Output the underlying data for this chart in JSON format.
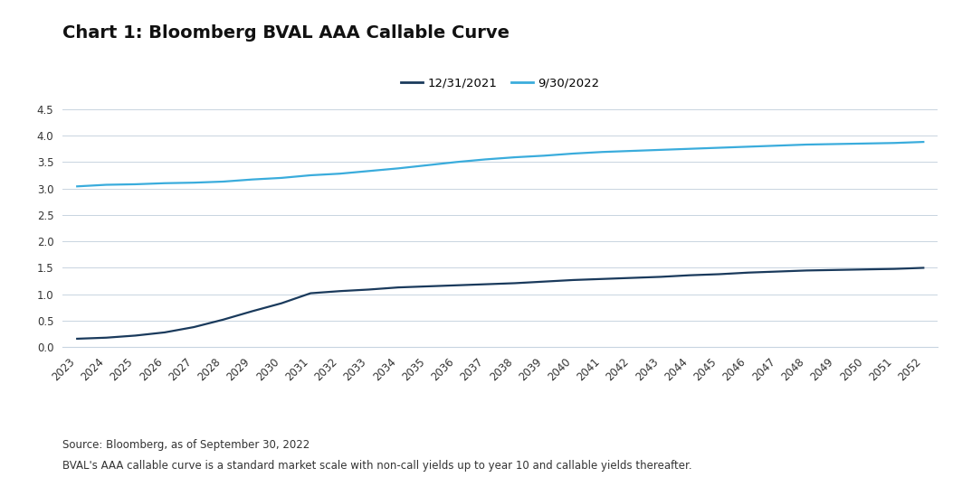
{
  "title": "Chart 1: Bloomberg BVAL AAA Callable Curve",
  "x_years": [
    2023,
    2024,
    2025,
    2026,
    2027,
    2028,
    2029,
    2030,
    2031,
    2032,
    2033,
    2034,
    2035,
    2036,
    2037,
    2038,
    2039,
    2040,
    2041,
    2042,
    2043,
    2044,
    2045,
    2046,
    2047,
    2048,
    2049,
    2050,
    2051,
    2052
  ],
  "series_2021_label": "12/31/2021",
  "series_2022_label": "9/30/2022",
  "series_2021_color": "#1a3a5c",
  "series_2022_color": "#3aacdc",
  "series_2021_values": [
    0.16,
    0.18,
    0.22,
    0.28,
    0.38,
    0.52,
    0.68,
    0.83,
    1.02,
    1.06,
    1.09,
    1.13,
    1.15,
    1.17,
    1.19,
    1.21,
    1.24,
    1.27,
    1.29,
    1.31,
    1.33,
    1.36,
    1.38,
    1.41,
    1.43,
    1.45,
    1.46,
    1.47,
    1.48,
    1.5
  ],
  "series_2022_values": [
    3.04,
    3.07,
    3.08,
    3.1,
    3.11,
    3.13,
    3.17,
    3.2,
    3.25,
    3.28,
    3.33,
    3.38,
    3.44,
    3.5,
    3.55,
    3.59,
    3.62,
    3.66,
    3.69,
    3.71,
    3.73,
    3.75,
    3.77,
    3.79,
    3.81,
    3.83,
    3.84,
    3.85,
    3.86,
    3.88
  ],
  "ylim_min": 0.0,
  "ylim_max": 4.5,
  "yticks": [
    0.0,
    0.5,
    1.0,
    1.5,
    2.0,
    2.5,
    3.0,
    3.5,
    4.0,
    4.5
  ],
  "footnote1": "Source: Bloomberg, as of September 30, 2022",
  "footnote2": "BVAL's AAA callable curve is a standard market scale with non-call yields up to year 10 and callable yields thereafter.",
  "background_color": "#ffffff",
  "grid_color": "#c8d4e0",
  "title_fontsize": 14,
  "tick_fontsize": 8.5,
  "footnote_fontsize": 8.5,
  "legend_fontsize": 9.5,
  "line_width": 1.6
}
